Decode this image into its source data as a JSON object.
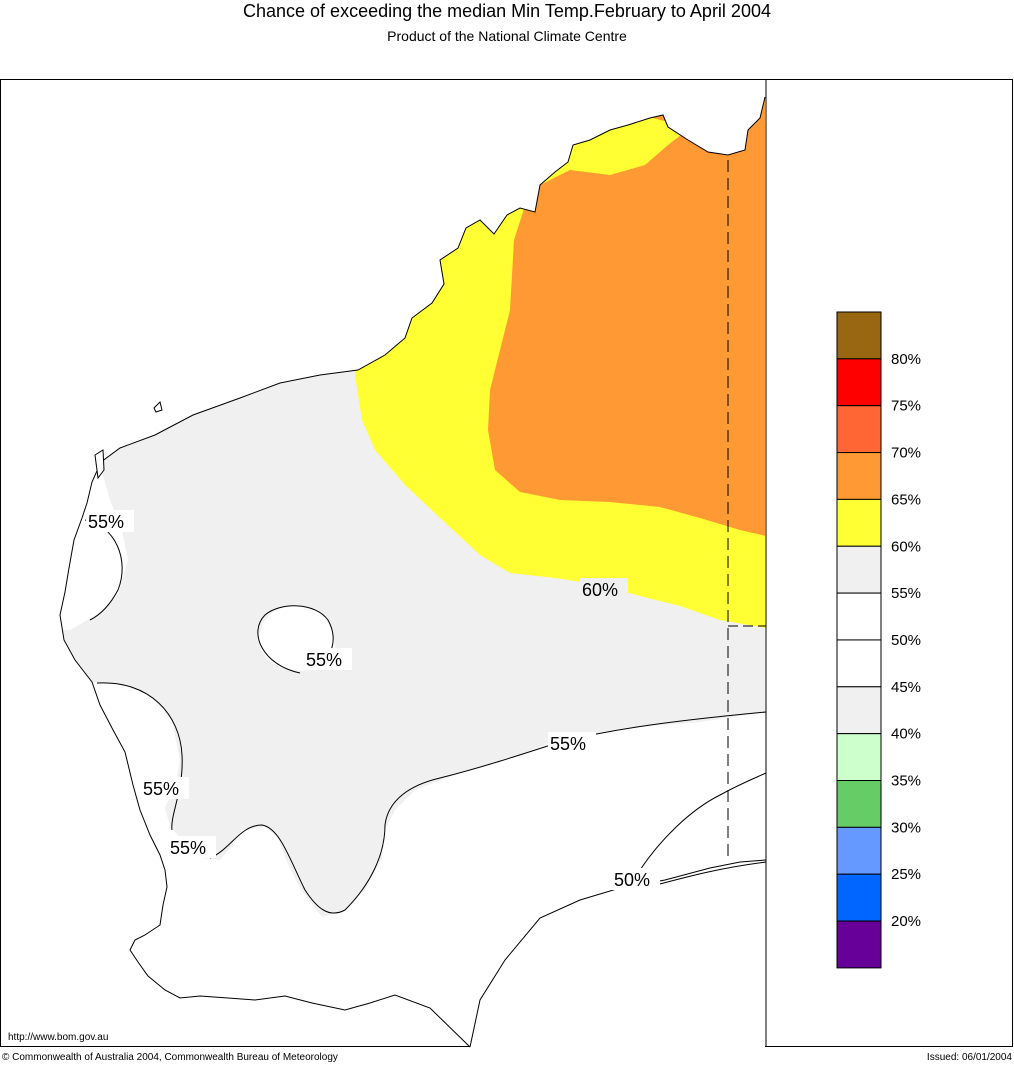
{
  "header": {
    "title": "Chance of exceeding the median Min Temp.February to April 2004",
    "subtitle": "Product of the National Climate Centre"
  },
  "footer": {
    "url": "http://www.bom.gov.au",
    "copyright": "© Commonwealth of Australia 2004, Commonwealth Bureau of Meteorology",
    "issued": "Issued: 06/01/2004"
  },
  "map": {
    "contour_labels": [
      "55%",
      "55%",
      "60%",
      "55%",
      "55%",
      "55%",
      "50%"
    ],
    "zone_colors": {
      "above_65": "#ff9933",
      "60_65": "#ffff33",
      "55_60": "#f0f0f0",
      "50_55": "#ffffff"
    }
  },
  "legend": {
    "bands": [
      {
        "color": "#996611"
      },
      {
        "color": "#ff0000"
      },
      {
        "color": "#ff6633"
      },
      {
        "color": "#ff9933"
      },
      {
        "color": "#ffff33"
      },
      {
        "color": "#f0f0f0"
      },
      {
        "color": "#ffffff"
      },
      {
        "color": "#ffffff"
      },
      {
        "color": "#f0f0f0"
      },
      {
        "color": "#ccffcc"
      },
      {
        "color": "#66cc66"
      },
      {
        "color": "#6699ff"
      },
      {
        "color": "#0066ff"
      },
      {
        "color": "#660099"
      }
    ],
    "labels": [
      "80%",
      "75%",
      "70%",
      "65%",
      "60%",
      "55%",
      "50%",
      "45%",
      "40%",
      "35%",
      "30%",
      "25%",
      "20%"
    ]
  }
}
